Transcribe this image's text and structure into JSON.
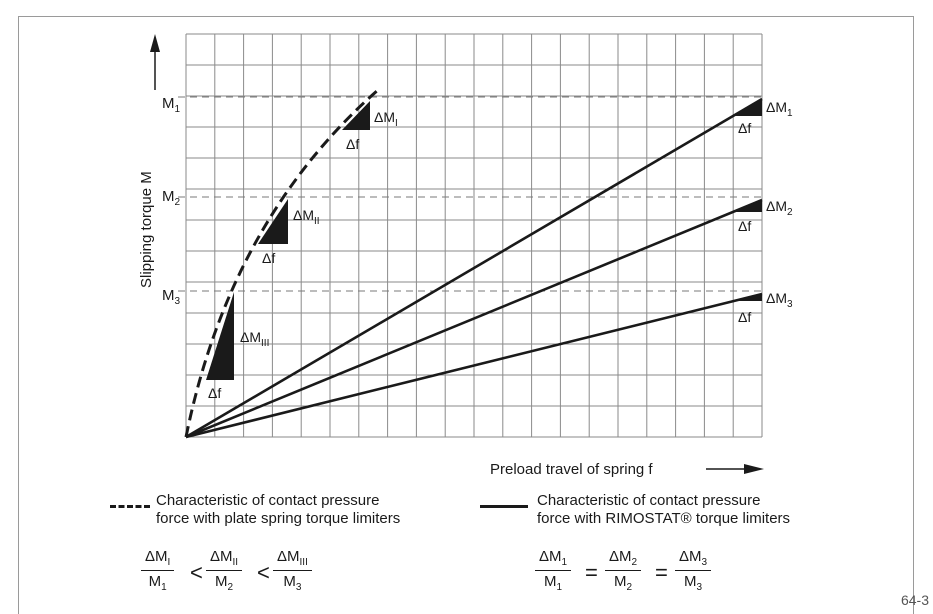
{
  "diagram": {
    "y_axis_label": "Slipping torque M",
    "x_axis_label": "Preload travel of spring f",
    "m_labels_left": [
      {
        "base": "M",
        "sub": "1"
      },
      {
        "base": "M",
        "sub": "2"
      },
      {
        "base": "M",
        "sub": "3"
      }
    ],
    "curve_annotations": [
      {
        "dm": "ΔM",
        "sub": "I",
        "df": "Δf"
      },
      {
        "dm": "ΔM",
        "sub": "II",
        "df": "Δf"
      },
      {
        "dm": "ΔM",
        "sub": "III",
        "df": "Δf"
      }
    ],
    "line_annotations": [
      {
        "dm": "ΔM",
        "sub": "1",
        "df": "Δf"
      },
      {
        "dm": "ΔM",
        "sub": "2",
        "df": "Δf"
      },
      {
        "dm": "ΔM",
        "sub": "3",
        "df": "Δf"
      }
    ]
  },
  "legend": {
    "dashed_line1": "Characteristic of contact pressure",
    "dashed_line2": "force with plate spring torque limiters",
    "solid_line1": "Characteristic of contact pressure",
    "solid_line2": "force with RIMOSTAT® torque limiters"
  },
  "formula_left": [
    {
      "num": "ΔM",
      "num_sub": "I",
      "den": "M",
      "den_sub": "1"
    },
    {
      "num": "ΔM",
      "num_sub": "II",
      "den": "M",
      "den_sub": "2"
    },
    {
      "num": "ΔM",
      "num_sub": "III",
      "den": "M",
      "den_sub": "3"
    }
  ],
  "formula_left_ops": [
    "<",
    "<"
  ],
  "formula_right": [
    {
      "num": "ΔM",
      "num_sub": "1",
      "den": "M",
      "den_sub": "1"
    },
    {
      "num": "ΔM",
      "num_sub": "2",
      "den": "M",
      "den_sub": "2"
    },
    {
      "num": "ΔM",
      "num_sub": "3",
      "den": "M",
      "den_sub": "3"
    }
  ],
  "formula_right_ops": [
    "=",
    "="
  ],
  "figure_id": "64-3"
}
